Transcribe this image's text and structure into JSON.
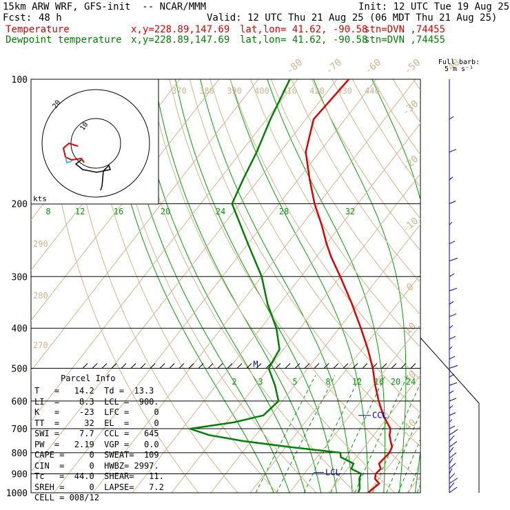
{
  "header": {
    "model": "15km ARW WRF, GFS-init  -- NCAR/MMM",
    "init": "Init: 12 UTC Tue 19 Aug 25",
    "fcst_label": "Fcst:",
    "fcst_value": "48 h",
    "valid": "Valid: 12 UTC Thu 21 Aug 25 (06 MDT Thu 21 Aug 25)",
    "temp_line": {
      "name": "Temperature",
      "xy": "x,y=228.89,147.69",
      "latlon": "lat,lon= 41.62, -90.58",
      "stn": "stn=DVN ,74455"
    },
    "dew_line": {
      "name": "Dewpoint temperature",
      "xy": "x,y=228.89,147.69",
      "latlon": "lat,lon= 41.62, -90.58",
      "stn": "stn=DVN ,74455"
    }
  },
  "colors": {
    "temperature": "#e00000",
    "dewpoint": "#008000",
    "isotherm_dry": "#d2b48c",
    "mixing_ratio": "#00a000",
    "wind": "#0000c0",
    "hodo_inner": "#40c0e0"
  },
  "chart_data": {
    "type": "line",
    "title": "",
    "pressure_levels": [
      "100",
      "200",
      "300",
      "400",
      "500",
      "600",
      "700",
      "800",
      "900",
      "1000"
    ],
    "pressure_axis": {
      "type": "log",
      "range": [
        1000,
        100
      ]
    },
    "temperature_profile_C": [
      {
        "p": 1000,
        "t": 20.0
      },
      {
        "p": 975,
        "t": 20.5
      },
      {
        "p": 950,
        "t": 21.0
      },
      {
        "p": 925,
        "t": 19.0
      },
      {
        "p": 900,
        "t": 18.2
      },
      {
        "p": 875,
        "t": 18.5
      },
      {
        "p": 850,
        "t": 17.0
      },
      {
        "p": 800,
        "t": 17.5
      },
      {
        "p": 775,
        "t": 17.0
      },
      {
        "p": 750,
        "t": 15.5
      },
      {
        "p": 725,
        "t": 14.0
      },
      {
        "p": 700,
        "t": 13.0
      },
      {
        "p": 650,
        "t": 8.5
      },
      {
        "p": 600,
        "t": 4.5
      },
      {
        "p": 550,
        "t": 0.5
      },
      {
        "p": 500,
        "t": -3.5
      },
      {
        "p": 450,
        "t": -8.5
      },
      {
        "p": 400,
        "t": -14.5
      },
      {
        "p": 350,
        "t": -21.5
      },
      {
        "p": 300,
        "t": -30.0
      },
      {
        "p": 270,
        "t": -36.0
      },
      {
        "p": 250,
        "t": -40.0
      },
      {
        "p": 225,
        "t": -45.0
      },
      {
        "p": 200,
        "t": -51.0
      },
      {
        "p": 175,
        "t": -57.0
      },
      {
        "p": 150,
        "t": -63.5
      },
      {
        "p": 125,
        "t": -68.0
      },
      {
        "p": 100,
        "t": -67.0
      }
    ],
    "dewpoint_profile_C": [
      {
        "p": 1000,
        "t": 17.5
      },
      {
        "p": 975,
        "t": 17.0
      },
      {
        "p": 950,
        "t": 16.0
      },
      {
        "p": 925,
        "t": 15.0
      },
      {
        "p": 900,
        "t": 14.5
      },
      {
        "p": 875,
        "t": 11.0
      },
      {
        "p": 850,
        "t": 10.5
      },
      {
        "p": 820,
        "t": 6.0
      },
      {
        "p": 800,
        "t": 5.0
      },
      {
        "p": 775,
        "t": -9.0
      },
      {
        "p": 750,
        "t": -22.0
      },
      {
        "p": 725,
        "t": -32.0
      },
      {
        "p": 700,
        "t": -38.0
      },
      {
        "p": 675,
        "t": -28.0
      },
      {
        "p": 650,
        "t": -22.0
      },
      {
        "p": 600,
        "t": -21.0
      },
      {
        "p": 550,
        "t": -25.0
      },
      {
        "p": 500,
        "t": -30.0
      },
      {
        "p": 450,
        "t": -31.0
      },
      {
        "p": 400,
        "t": -36.0
      },
      {
        "p": 350,
        "t": -43.0
      },
      {
        "p": 300,
        "t": -50.0
      },
      {
        "p": 250,
        "t": -60.0
      },
      {
        "p": 200,
        "t": -72.0
      },
      {
        "p": 175,
        "t": -74.0
      },
      {
        "p": 150,
        "t": -76.0
      },
      {
        "p": 125,
        "t": -79.0
      },
      {
        "p": 100,
        "t": -82.0
      }
    ],
    "isotherm_labels_top": [
      "-80",
      "-70",
      "-60",
      "-50",
      "-40"
    ],
    "isotherm_labels_right": [
      "-30",
      "-20",
      "-10",
      "0",
      "10",
      "30",
      "40"
    ],
    "theta_labels_top": [
      "370",
      "380",
      "390",
      "400",
      "410",
      "420",
      "430",
      "440"
    ],
    "theta_labels_left": [
      "290",
      "280",
      "270"
    ],
    "mixing_ratio_labels_upper": [
      "8",
      "12",
      "16",
      "20",
      "24",
      "28",
      "32"
    ],
    "mixing_ratio_labels_lower": [
      "2",
      "3",
      "5",
      "8",
      "12",
      "16",
      "20",
      "24"
    ],
    "markers": [
      {
        "label": "CCL",
        "p": 650
      },
      {
        "label": "LCL",
        "p": 900
      },
      {
        "label": "M",
        "p": 500
      }
    ],
    "wind_title": "Full barb:",
    "wind_subtitle": "5 m s⁻¹",
    "hodograph": {
      "rings_label": [
        "10",
        "20"
      ],
      "kts_label": "kts"
    }
  },
  "parcel_info": {
    "title": "Parcel Info",
    "rows": [
      "T   =   14.2  Td =  13.3",
      "LI  =    8.3  LCL =  900.",
      "K   =    -23  LFC =     0",
      "TT  =     32  EL  =     0",
      "SWI =    7.7  CCL =   645",
      "PW  =   2.19  VGP =   0.0",
      "CAPE =     0  SWEAT=  109",
      "CIN  =     0  HWBZ= 2997.",
      "Tc   =  44.0  SHEAR=   11.",
      "SREH =     0  LAPSE=   7.2",
      "CELL = 008/12"
    ]
  }
}
